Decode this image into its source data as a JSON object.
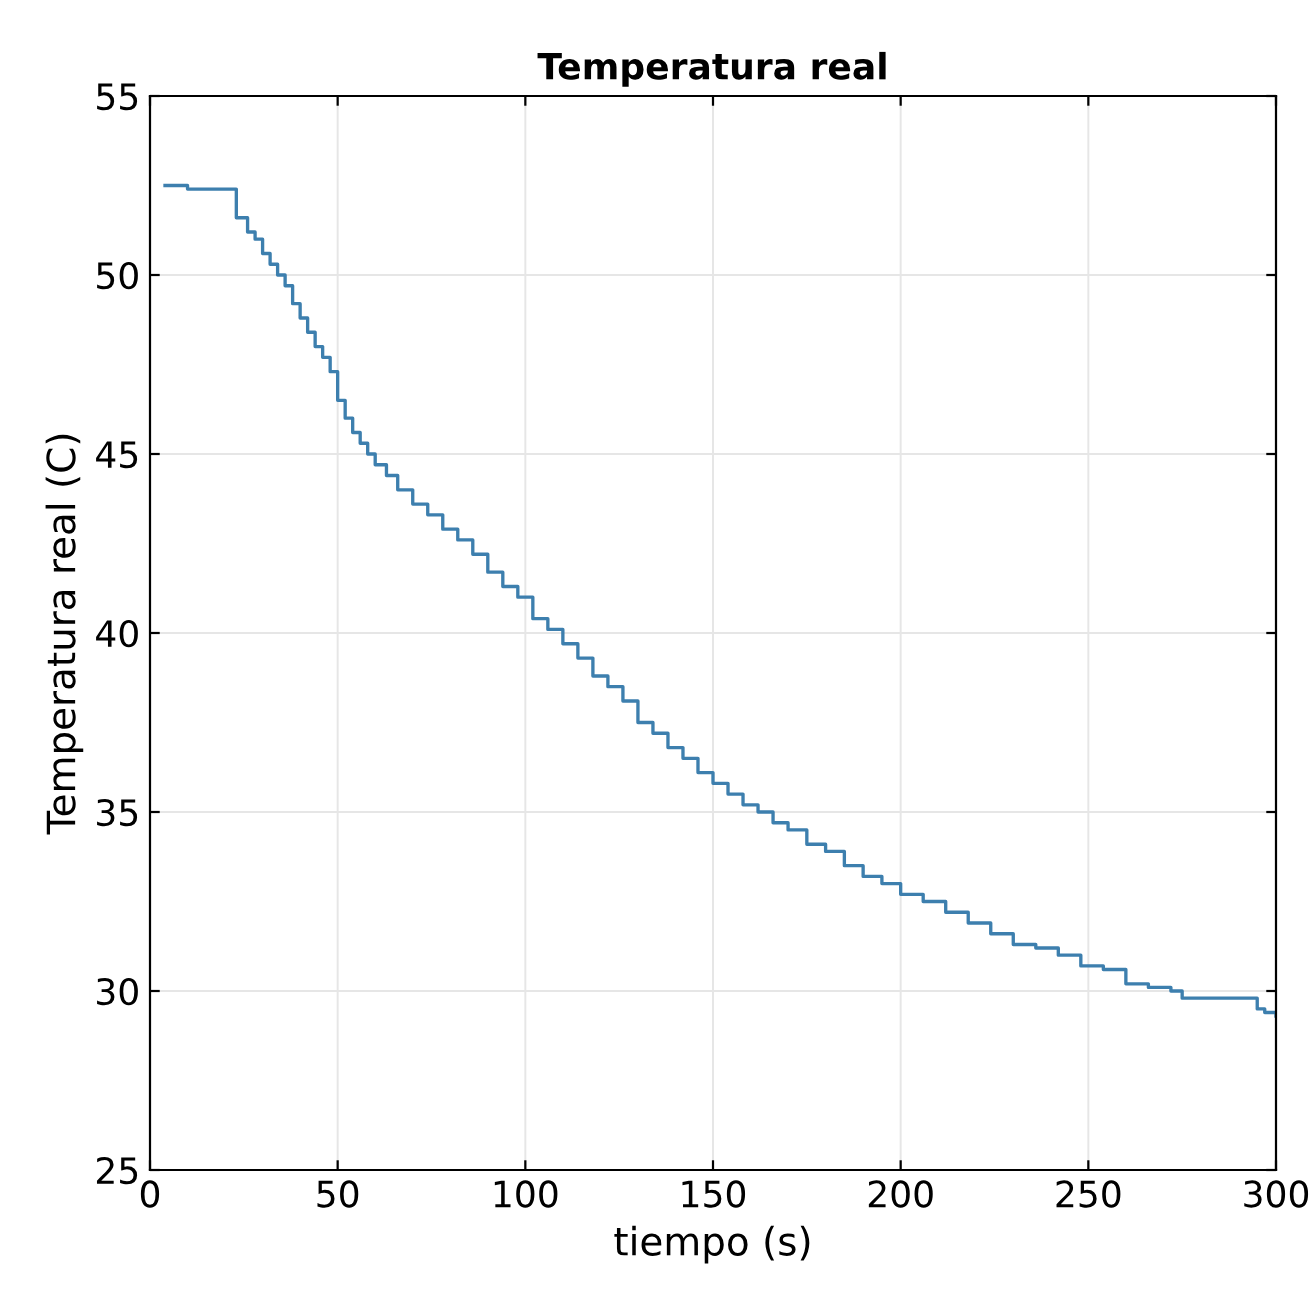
{
  "chart_data": {
    "type": "step",
    "title": "Temperatura real",
    "xlabel": "tiempo (s)",
    "ylabel": "Temperatura real (C)",
    "xlim": [
      0,
      300
    ],
    "ylim": [
      25,
      55
    ],
    "xticks": [
      0,
      50,
      100,
      150,
      200,
      250,
      300
    ],
    "yticks": [
      25,
      30,
      35,
      40,
      45,
      50,
      55
    ],
    "grid": true,
    "series": [
      {
        "color": "#3d7fae",
        "x": [
          4,
          10,
          20,
          23,
          26,
          28,
          30,
          32,
          34,
          36,
          38,
          40,
          42,
          44,
          46,
          48,
          50,
          52,
          54,
          56,
          58,
          60,
          63,
          66,
          70,
          74,
          78,
          82,
          86,
          90,
          94,
          98,
          102,
          106,
          110,
          114,
          118,
          122,
          126,
          130,
          134,
          138,
          142,
          146,
          150,
          154,
          158,
          162,
          166,
          170,
          175,
          180,
          185,
          190,
          195,
          200,
          206,
          212,
          218,
          224,
          230,
          236,
          242,
          248,
          254,
          260,
          266,
          272,
          275,
          285,
          293,
          295,
          297,
          300
        ],
        "values": [
          52.5,
          52.4,
          52.4,
          51.6,
          51.2,
          51.0,
          50.6,
          50.3,
          50.0,
          49.7,
          49.2,
          48.8,
          48.4,
          48.0,
          47.7,
          47.3,
          46.5,
          46.0,
          45.6,
          45.3,
          45.0,
          44.7,
          44.4,
          44.0,
          43.6,
          43.3,
          42.9,
          42.6,
          42.2,
          41.7,
          41.3,
          41.0,
          40.4,
          40.1,
          39.7,
          39.3,
          38.8,
          38.5,
          38.1,
          37.5,
          37.2,
          36.8,
          36.5,
          36.1,
          35.8,
          35.5,
          35.2,
          35.0,
          34.7,
          34.5,
          34.1,
          33.9,
          33.5,
          33.2,
          33.0,
          32.7,
          32.5,
          32.2,
          31.9,
          31.6,
          31.3,
          31.2,
          31.0,
          30.7,
          30.6,
          30.2,
          30.1,
          30.0,
          29.8,
          29.8,
          29.8,
          29.5,
          29.4,
          29.3
        ]
      }
    ]
  }
}
